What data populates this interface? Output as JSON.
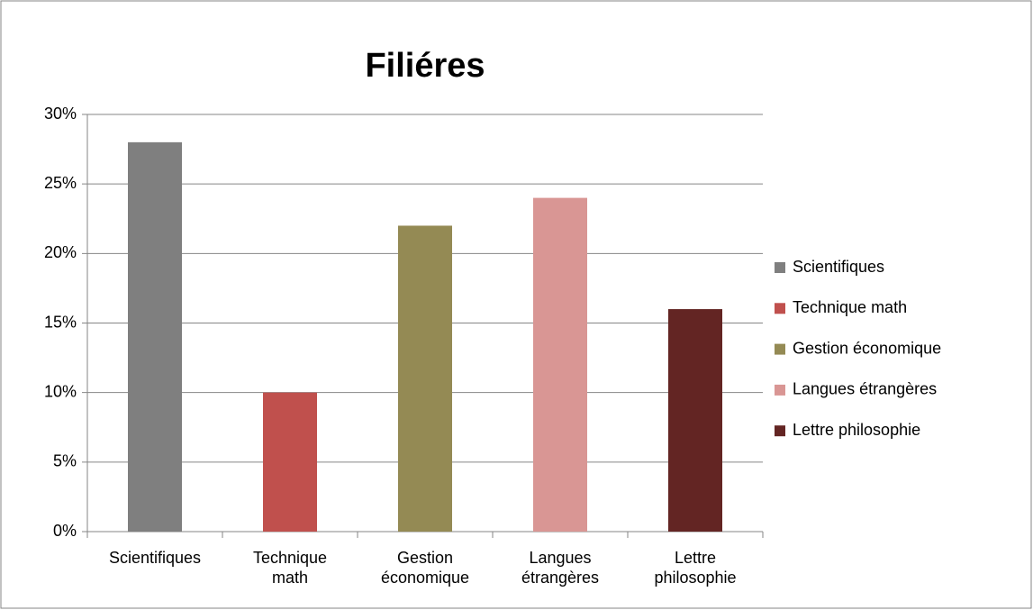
{
  "chart_data": {
    "type": "bar",
    "title": "Filiéres",
    "categories": [
      "Scientifiques",
      "Technique math",
      "Gestion économique",
      "Langues étrangères",
      "Lettre philosophie"
    ],
    "values": [
      28,
      10,
      22,
      24,
      16
    ],
    "colors": [
      "#7f7f7f",
      "#c0504d",
      "#948a54",
      "#d99694",
      "#632523"
    ],
    "ylim": [
      0,
      30
    ],
    "yticks": [
      {
        "value": 0,
        "label": "0%"
      },
      {
        "value": 5,
        "label": "5%"
      },
      {
        "value": 10,
        "label": "10%"
      },
      {
        "value": 15,
        "label": "15%"
      },
      {
        "value": 20,
        "label": "20%"
      },
      {
        "value": 25,
        "label": "25%"
      },
      {
        "value": 30,
        "label": "30%"
      }
    ],
    "grid": true,
    "legend": "right"
  }
}
